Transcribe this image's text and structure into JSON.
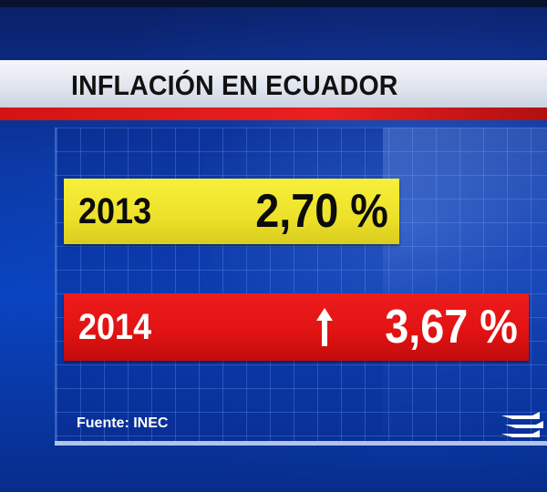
{
  "title": "INFLACIÓN EN ECUADOR",
  "rows": [
    {
      "year": "2013",
      "value": "2,70 %",
      "highlight_color": "#ede12a",
      "trend": ""
    },
    {
      "year": "2014",
      "value": "3,67 %",
      "highlight_color": "#e01212",
      "trend": "up-arrow-icon"
    }
  ],
  "source": "Fuente: INEC",
  "logo": "channel-logo-icon",
  "colors": {
    "background": "#0a44c0",
    "title_banner": "#e6eaf1",
    "accent_red": "#e01212",
    "accent_yellow": "#ede12a"
  }
}
